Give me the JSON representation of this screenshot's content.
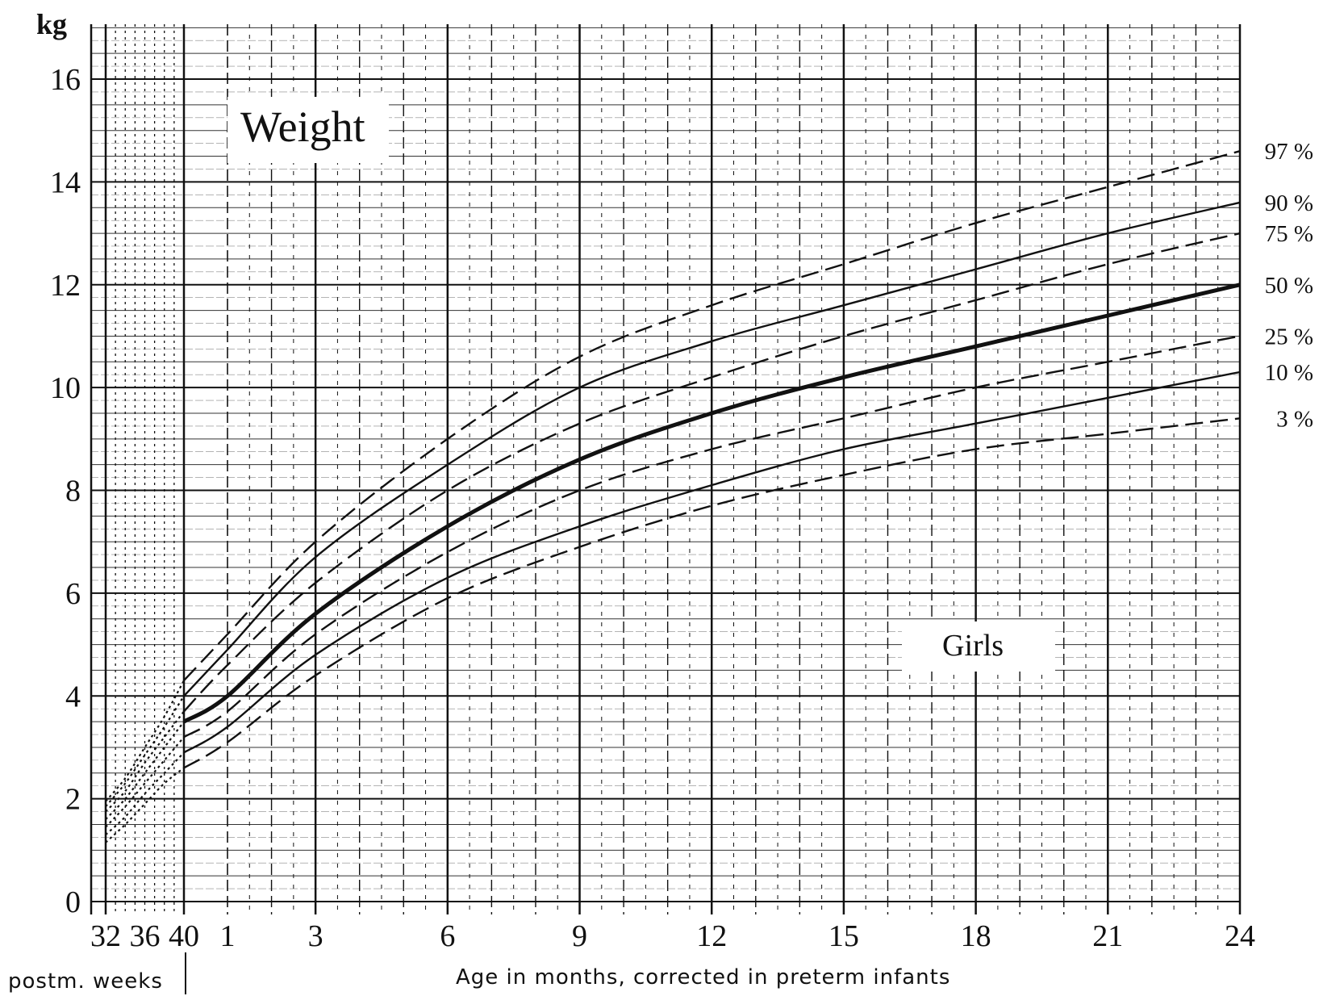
{
  "chart_data": {
    "type": "line",
    "title": "Weight",
    "annotation": "Girls",
    "y_unit": "kg",
    "xlabel": "Age in months, corrected in preterm infants",
    "xlabel_weeks": "postm. weeks",
    "ylim": [
      0,
      17
    ],
    "yticks": [
      "0",
      "2",
      "4",
      "6",
      "8",
      "10",
      "12",
      "14",
      "16"
    ],
    "xticks_weeks": [
      "32",
      "36",
      "40"
    ],
    "xticks_months": [
      "1",
      "3",
      "6",
      "9",
      "12",
      "15",
      "18",
      "21",
      "24"
    ],
    "grid": true,
    "legend": "right-end labels",
    "series": [
      {
        "name": "97 %",
        "style": "dashed",
        "weeks": [
          32,
          34,
          36,
          38,
          40
        ],
        "weeks_values": [
          1.95,
          2.4,
          3.0,
          3.6,
          4.3
        ],
        "months": [
          0,
          1,
          3,
          6,
          9,
          12,
          15,
          18,
          21,
          24
        ],
        "values": [
          4.3,
          5.2,
          7.0,
          9.0,
          10.6,
          11.6,
          12.4,
          13.2,
          13.9,
          14.6
        ]
      },
      {
        "name": "90 %",
        "style": "solid",
        "weeks": [
          32,
          34,
          36,
          38,
          40
        ],
        "weeks_values": [
          1.85,
          2.3,
          2.85,
          3.4,
          4.0
        ],
        "months": [
          0,
          1,
          3,
          6,
          9,
          12,
          15,
          18,
          21,
          24
        ],
        "values": [
          4.0,
          4.9,
          6.7,
          8.5,
          10.0,
          10.9,
          11.6,
          12.3,
          13.0,
          13.6
        ]
      },
      {
        "name": "75 %",
        "style": "dashed",
        "weeks": [
          32,
          34,
          36,
          38,
          40
        ],
        "weeks_values": [
          1.75,
          2.15,
          2.7,
          3.2,
          3.7
        ],
        "months": [
          0,
          1,
          3,
          6,
          9,
          12,
          15,
          18,
          21,
          24
        ],
        "values": [
          3.7,
          4.6,
          6.2,
          8.0,
          9.3,
          10.2,
          11.0,
          11.7,
          12.4,
          13.0
        ]
      },
      {
        "name": "50 %",
        "style": "solid-bold",
        "weeks": [
          32,
          34,
          36,
          38,
          40
        ],
        "weeks_values": [
          1.6,
          2.0,
          2.5,
          3.0,
          3.5
        ],
        "months": [
          0,
          1,
          3,
          6,
          9,
          12,
          15,
          18,
          21,
          24
        ],
        "values": [
          3.5,
          4.0,
          5.6,
          7.3,
          8.6,
          9.5,
          10.2,
          10.8,
          11.4,
          12.0
        ]
      },
      {
        "name": "25 %",
        "style": "dashed",
        "weeks": [
          32,
          34,
          36,
          38,
          40
        ],
        "weeks_values": [
          1.45,
          1.85,
          2.3,
          2.75,
          3.2
        ],
        "months": [
          0,
          1,
          3,
          6,
          9,
          12,
          15,
          18,
          21,
          24
        ],
        "values": [
          3.2,
          3.7,
          5.2,
          6.8,
          8.0,
          8.8,
          9.4,
          10.0,
          10.5,
          11.0
        ]
      },
      {
        "name": "10 %",
        "style": "solid",
        "weeks": [
          32,
          34,
          36,
          38,
          40
        ],
        "weeks_values": [
          1.3,
          1.65,
          2.1,
          2.5,
          2.9
        ],
        "months": [
          0,
          1,
          3,
          6,
          9,
          12,
          15,
          18,
          21,
          24
        ],
        "values": [
          2.9,
          3.4,
          4.8,
          6.3,
          7.3,
          8.1,
          8.8,
          9.3,
          9.8,
          10.3
        ]
      },
      {
        "name": "3 %",
        "style": "dashed",
        "weeks": [
          32,
          34,
          36,
          38,
          40
        ],
        "weeks_values": [
          1.15,
          1.5,
          1.9,
          2.3,
          2.6
        ],
        "months": [
          0,
          1,
          3,
          6,
          9,
          12,
          15,
          18,
          21,
          24
        ],
        "values": [
          2.6,
          3.1,
          4.4,
          5.9,
          6.9,
          7.7,
          8.3,
          8.8,
          9.1,
          9.4
        ]
      }
    ],
    "colors": {
      "ink": "#111111",
      "grid": "#333333",
      "background": "#ffffff"
    }
  }
}
